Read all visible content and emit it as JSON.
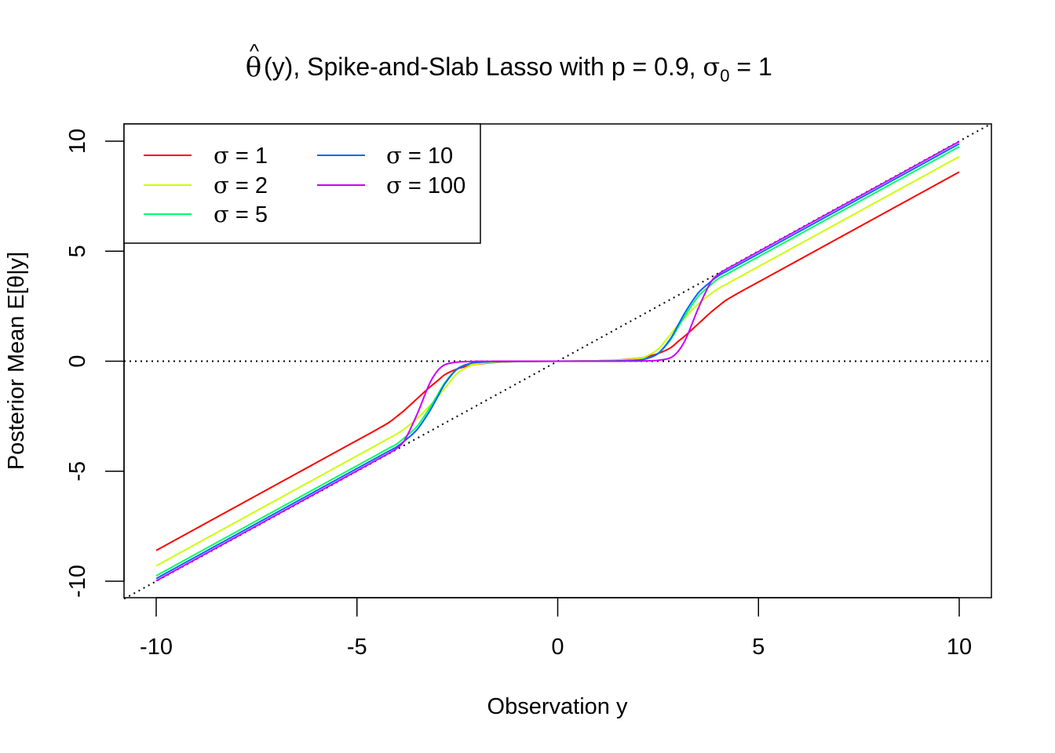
{
  "chart_data": {
    "type": "line",
    "title": {
      "hat_symbol": "^",
      "theta_symbol": "θ",
      "main_text": "(y), Spike-and-Slab Lasso with p = 0.9,  ",
      "sigma_symbol": "σ",
      "sigma_subscript": "0",
      "sigma_value": " = 1"
    },
    "xlabel": "Observation y",
    "ylabel": "Posterior Mean E[θ|y]",
    "xlim": [
      -10.8,
      10.8
    ],
    "ylim": [
      -10.8,
      10.8
    ],
    "x_ticks": [
      -10,
      -5,
      0,
      5,
      10
    ],
    "y_ticks": [
      -10,
      -5,
      0,
      5,
      10
    ],
    "x_tick_labels": [
      "-10",
      "-5",
      "0",
      "5",
      "10"
    ],
    "y_tick_labels": [
      "-10",
      "-5",
      "0",
      "5",
      "10"
    ],
    "grid": false,
    "legend_position": "top-left",
    "reference_lines": [
      {
        "type": "horizontal",
        "y": 0,
        "style": "dotted",
        "color": "#000000"
      },
      {
        "type": "diagonal",
        "slope": 1,
        "intercept": 0,
        "style": "dotted",
        "color": "#000000"
      }
    ],
    "x": [
      -10,
      -8,
      -6,
      -5,
      -4.5,
      -4.2,
      -4,
      -3.8,
      -3.5,
      -3.2,
      -3,
      -2.8,
      -2.5,
      -2.2,
      -2,
      -1.5,
      -1,
      0,
      1,
      1.5,
      2,
      2.2,
      2.5,
      2.8,
      3,
      3.2,
      3.5,
      3.8,
      4,
      4.2,
      4.5,
      5,
      6,
      8,
      10
    ],
    "series": [
      {
        "name": "σ = 1",
        "color": "#ff0000",
        "values": [
          -8.6,
          -6.6,
          -4.6,
          -3.6,
          -3.1,
          -2.78,
          -2.5,
          -2.2,
          -1.7,
          -1.2,
          -0.9,
          -0.6,
          -0.35,
          -0.2,
          -0.13,
          -0.05,
          -0.02,
          0,
          0.02,
          0.05,
          0.13,
          0.2,
          0.35,
          0.6,
          0.9,
          1.2,
          1.7,
          2.2,
          2.5,
          2.78,
          3.1,
          3.6,
          4.6,
          6.6,
          8.6
        ]
      },
      {
        "name": "σ = 2",
        "color": "#ccff00",
        "values": [
          -9.3,
          -7.3,
          -5.3,
          -4.3,
          -3.8,
          -3.5,
          -3.3,
          -3.05,
          -2.6,
          -2.05,
          -1.65,
          -1.2,
          -0.55,
          -0.22,
          -0.12,
          -0.04,
          -0.015,
          0,
          0.015,
          0.04,
          0.12,
          0.22,
          0.55,
          1.2,
          1.65,
          2.05,
          2.6,
          3.05,
          3.3,
          3.5,
          3.8,
          4.3,
          5.3,
          7.3,
          9.3
        ]
      },
      {
        "name": "σ = 5",
        "color": "#00ff66",
        "values": [
          -9.75,
          -7.75,
          -5.75,
          -4.75,
          -4.25,
          -3.95,
          -3.75,
          -3.45,
          -2.95,
          -2.15,
          -1.55,
          -0.95,
          -0.35,
          -0.12,
          -0.06,
          -0.02,
          -0.008,
          0,
          0.008,
          0.02,
          0.06,
          0.12,
          0.35,
          0.95,
          1.55,
          2.15,
          2.95,
          3.45,
          3.75,
          3.95,
          4.25,
          4.75,
          5.75,
          7.75,
          9.75
        ]
      },
      {
        "name": "σ = 10",
        "color": "#0066ff",
        "values": [
          -9.88,
          -7.88,
          -5.88,
          -4.88,
          -4.38,
          -4.08,
          -3.88,
          -3.6,
          -3.1,
          -2.3,
          -1.65,
          -1.0,
          -0.35,
          -0.11,
          -0.05,
          -0.015,
          -0.006,
          0,
          0.006,
          0.015,
          0.05,
          0.11,
          0.35,
          1.0,
          1.65,
          2.3,
          3.1,
          3.6,
          3.88,
          4.08,
          4.38,
          4.88,
          5.88,
          7.88,
          9.88
        ]
      },
      {
        "name": "σ = 100",
        "color": "#cc00ff",
        "values": [
          -9.98,
          -7.98,
          -5.98,
          -4.98,
          -4.48,
          -4.18,
          -3.95,
          -3.55,
          -2.4,
          -1.05,
          -0.45,
          -0.15,
          -0.04,
          -0.012,
          -0.006,
          -0.002,
          -0.001,
          0,
          0.001,
          0.002,
          0.006,
          0.012,
          0.04,
          0.15,
          0.45,
          1.05,
          2.4,
          3.55,
          3.95,
          4.18,
          4.48,
          4.98,
          5.98,
          7.98,
          9.98
        ]
      }
    ],
    "legend": [
      {
        "symbol": "σ",
        "text": " = 1"
      },
      {
        "symbol": "σ",
        "text": " = 2"
      },
      {
        "symbol": "σ",
        "text": " = 5"
      },
      {
        "symbol": "σ",
        "text": " = 10"
      },
      {
        "symbol": "σ",
        "text": " = 100"
      }
    ]
  }
}
